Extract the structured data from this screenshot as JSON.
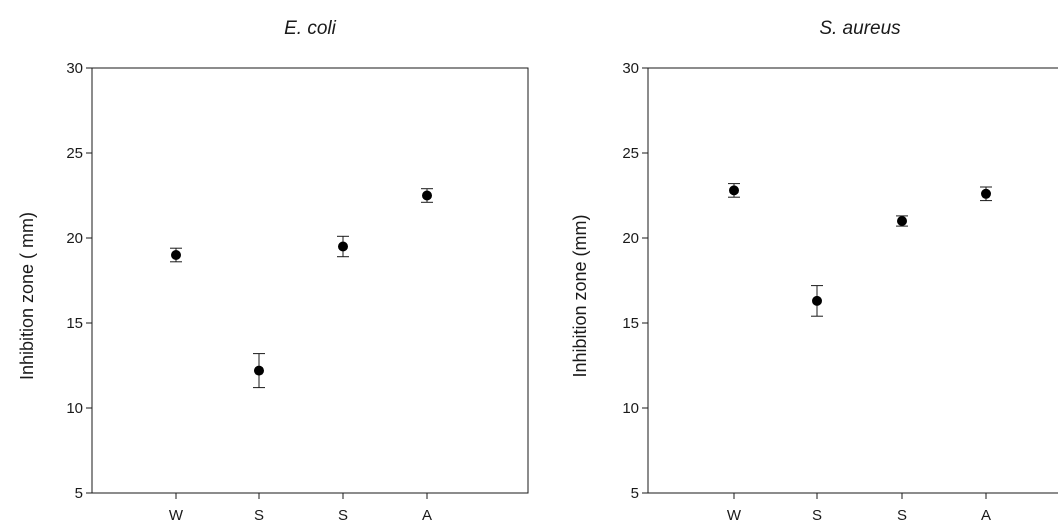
{
  "chart_data": [
    {
      "type": "scatter",
      "title": "E. coli",
      "xlabel": "",
      "ylabel": "Inhibition zone ( mm)",
      "categories": [
        "W",
        "S",
        "S",
        "A"
      ],
      "values": [
        19.0,
        12.2,
        19.5,
        22.5
      ],
      "errors": [
        0.4,
        1.0,
        0.6,
        0.4
      ],
      "ylim": [
        5,
        30
      ],
      "yticks": [
        5,
        10,
        15,
        20,
        25,
        30
      ],
      "grid": false,
      "legend": "none",
      "marker_color": "#000000"
    },
    {
      "type": "scatter",
      "title": "S. aureus",
      "xlabel": "",
      "ylabel": "Inhibition zone (mm)",
      "categories": [
        "W",
        "S",
        "S",
        "A"
      ],
      "values": [
        22.8,
        16.3,
        21.0,
        22.6
      ],
      "errors": [
        0.4,
        0.9,
        0.3,
        0.4
      ],
      "ylim": [
        5,
        30
      ],
      "yticks": [
        5,
        10,
        15,
        20,
        25,
        30
      ],
      "grid": false,
      "legend": "none",
      "marker_color": "#000000"
    }
  ]
}
